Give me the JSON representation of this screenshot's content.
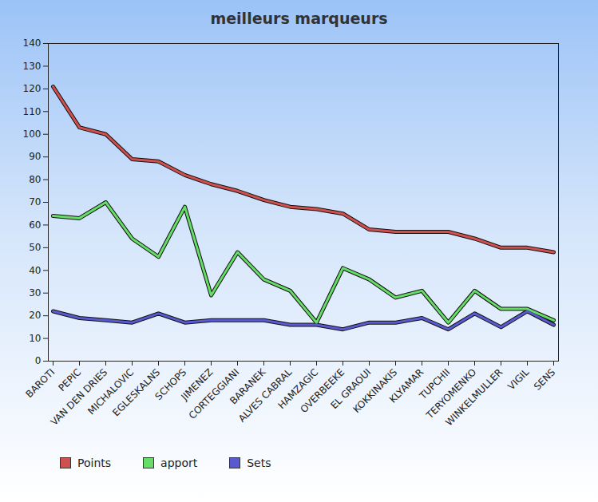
{
  "chart_data": {
    "type": "line",
    "title": "meilleurs marqueurs",
    "categories": [
      "BAROTI",
      "PEPIC",
      "VAN DEN DRIES",
      "MICHALOVIC",
      "EGLESKALNS",
      "SCHOPS",
      "JIMENEZ",
      "CORTEGGIANI",
      "BARANEK",
      "ALVES CABRAL",
      "HAMZAGIC",
      "OVERBEEKE",
      "EL GRAOUI",
      "KOKKINAKIS",
      "KLYAMAR",
      "TUPCHII",
      "TERYOMENKO",
      "WINKELMULLER",
      "VIGIL",
      "SENS"
    ],
    "series": [
      {
        "name": "Points",
        "color": "#d05050",
        "values": [
          121,
          103,
          100,
          89,
          88,
          82,
          78,
          75,
          71,
          68,
          67,
          65,
          58,
          57,
          57,
          57,
          54,
          50,
          50,
          48
        ]
      },
      {
        "name": "apport",
        "color": "#66dd66",
        "values": [
          64,
          63,
          70,
          54,
          46,
          68,
          29,
          48,
          36,
          31,
          17,
          41,
          36,
          28,
          31,
          17,
          31,
          23,
          23,
          18
        ]
      },
      {
        "name": "Sets",
        "color": "#5a5ad0",
        "values": [
          22,
          19,
          18,
          17,
          21,
          17,
          18,
          18,
          18,
          16,
          16,
          14,
          17,
          17,
          19,
          14,
          21,
          15,
          22,
          16
        ]
      }
    ],
    "ylim": [
      0,
      140
    ],
    "yticks": [
      0,
      10,
      20,
      30,
      40,
      50,
      60,
      70,
      80,
      90,
      100,
      110,
      120,
      130,
      140
    ],
    "grid": false,
    "legend": "bottom-left"
  }
}
